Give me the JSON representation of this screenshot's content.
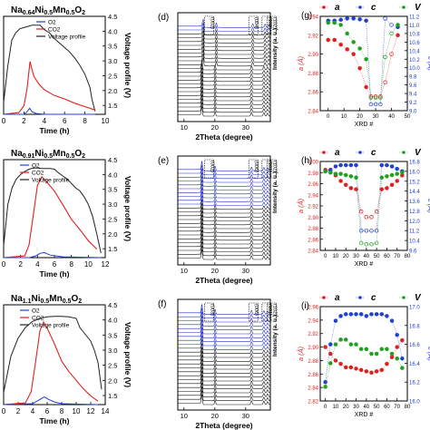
{
  "chart_data": [
    {
      "panel": "",
      "type": "line",
      "title": "Na0.64Ni0.5Mn0.5O2",
      "xlabel": "Time (h)",
      "ylabel_right": "Voltage profile (V)",
      "xlim": [
        0,
        10
      ],
      "xticks": [
        "0",
        "2",
        "4",
        "6",
        "8",
        "10"
      ],
      "y2lim": [
        1.2,
        4.5
      ],
      "y2ticks": [
        "1.5",
        "2.0",
        "2.5",
        "3.0",
        "3.5",
        "4.0",
        "4.5"
      ],
      "legend": [
        "O2",
        "CO2",
        "Voltage profile"
      ],
      "legend_position": "top-center",
      "series": [
        {
          "name": "Voltage profile",
          "color": "#222222",
          "axis": "right",
          "x": [
            0,
            0.4,
            0.8,
            1.2,
            1.6,
            2.0,
            2.4,
            2.8,
            3.2,
            3.6,
            4.0,
            4.5,
            5.0,
            5.5,
            6.0,
            6.5,
            7.0,
            7.5,
            8.0,
            8.5,
            8.7,
            9.0
          ],
          "y": [
            1.6,
            2.8,
            3.7,
            3.95,
            4.08,
            4.12,
            4.16,
            4.2,
            4.2,
            4.2,
            4.05,
            3.95,
            3.75,
            3.6,
            3.45,
            3.3,
            3.1,
            2.85,
            2.55,
            2.1,
            1.7,
            1.3
          ]
        },
        {
          "name": "CO2",
          "color": "#e02020",
          "axis": "left",
          "x": [
            0,
            1.5,
            2.0,
            2.3,
            2.6,
            2.8,
            3.0,
            3.5,
            4.0,
            5.0,
            6.0,
            7.0,
            8.0,
            9.0
          ],
          "y": [
            0.0,
            0.02,
            0.1,
            0.3,
            0.62,
            0.52,
            0.44,
            0.35,
            0.29,
            0.22,
            0.18,
            0.13,
            0.09,
            0.05
          ]
        },
        {
          "name": "O2",
          "color": "#2040d0",
          "axis": "left",
          "x": [
            0,
            2.0,
            2.3,
            2.55,
            2.8,
            3.2,
            4.0,
            9.0
          ],
          "y": [
            0.0,
            0.0,
            0.03,
            0.07,
            0.03,
            0.01,
            0.0,
            0.0
          ]
        }
      ]
    },
    {
      "panel": "",
      "type": "line",
      "title": "Na0.91Ni0.5Mn0.5O2",
      "xlabel": "Time (h)",
      "ylabel_right": "Voltage profile (V)",
      "xlim": [
        0,
        12
      ],
      "xticks": [
        "0",
        "2",
        "4",
        "6",
        "8",
        "10",
        "12"
      ],
      "y2lim": [
        1.2,
        4.5
      ],
      "y2ticks": [
        "1.5",
        "2.0",
        "2.5",
        "3.0",
        "3.5",
        "4.0",
        "4.5"
      ],
      "legend": [
        "O2",
        "CO2",
        "Voltage profile"
      ],
      "legend_position": "top-left",
      "series": [
        {
          "name": "Voltage profile",
          "color": "#222222",
          "axis": "right",
          "x": [
            0,
            0.5,
            1.0,
            1.5,
            2.0,
            2.5,
            3.0,
            3.5,
            4.0,
            4.5,
            5.0,
            5.5,
            6.0,
            6.5,
            7.0,
            7.5,
            8.0,
            8.5,
            9.0,
            9.5,
            10.0,
            10.5,
            11.0,
            11.5
          ],
          "y": [
            1.6,
            3.0,
            3.55,
            3.85,
            4.0,
            4.1,
            4.18,
            4.22,
            4.22,
            4.2,
            4.2,
            4.2,
            4.18,
            4.05,
            3.95,
            3.85,
            3.7,
            3.55,
            3.45,
            3.25,
            3.0,
            2.6,
            2.0,
            1.35
          ]
        },
        {
          "name": "CO2",
          "color": "#e02020",
          "axis": "left",
          "x": [
            0,
            2.5,
            3.0,
            3.5,
            4.0,
            4.5,
            5.0,
            6.0,
            7.0,
            8.0,
            9.0,
            10.0,
            11.0
          ],
          "y": [
            0.0,
            0.02,
            0.15,
            0.5,
            0.85,
            0.95,
            0.9,
            0.78,
            0.62,
            0.45,
            0.33,
            0.2,
            0.1
          ]
        },
        {
          "name": "O2",
          "color": "#2040d0",
          "axis": "left",
          "x": [
            0,
            3.0,
            3.8,
            4.3,
            4.8,
            5.5,
            7.0,
            11.5
          ],
          "y": [
            0.0,
            0.0,
            0.02,
            0.05,
            0.06,
            0.03,
            0.01,
            0.0
          ]
        }
      ]
    },
    {
      "panel": "",
      "type": "line",
      "title": "Na1.1Ni0.5Mn0.5O2",
      "xlabel": "Time (h)",
      "ylabel_right": "Voltage profile (V)",
      "xlim": [
        0,
        14
      ],
      "xticks": [
        "0",
        "2",
        "4",
        "6",
        "8",
        "10",
        "12",
        "14"
      ],
      "y2lim": [
        1.2,
        4.5
      ],
      "y2ticks": [
        "1.5",
        "2.0",
        "2.5",
        "3.0",
        "3.5",
        "4.0",
        "4.5"
      ],
      "legend": [
        "O2",
        "CO2",
        "Voltage profile"
      ],
      "legend_position": "top-left",
      "series": [
        {
          "name": "Voltage profile",
          "color": "#222222",
          "axis": "right",
          "x": [
            0,
            1.0,
            2.0,
            3.0,
            4.0,
            5.0,
            6.0,
            7.0,
            8.0,
            9.0,
            10.0,
            10.5,
            11.0,
            11.5,
            12.0,
            12.5,
            13.0,
            13.5
          ],
          "y": [
            1.6,
            2.8,
            3.4,
            3.75,
            3.95,
            4.05,
            4.1,
            4.12,
            4.12,
            4.1,
            4.05,
            3.75,
            3.6,
            3.45,
            3.3,
            3.0,
            2.6,
            1.7
          ]
        },
        {
          "name": "CO2",
          "color": "#e02020",
          "axis": "left",
          "x": [
            0,
            3.0,
            3.8,
            4.5,
            5.0,
            5.5,
            6.0,
            7.0,
            8.0,
            9.0,
            10.0,
            11.0,
            12.0,
            13.0
          ],
          "y": [
            0.0,
            0.02,
            0.15,
            0.55,
            0.85,
            0.95,
            0.88,
            0.7,
            0.5,
            0.38,
            0.28,
            0.18,
            0.1,
            0.04
          ]
        },
        {
          "name": "O2",
          "color": "#2040d0",
          "axis": "left",
          "x": [
            0,
            4.0,
            5.0,
            5.6,
            6.2,
            7.0,
            8.0,
            13.0
          ],
          "y": [
            0.0,
            0.01,
            0.06,
            0.09,
            0.06,
            0.03,
            0.01,
            0.0
          ]
        }
      ]
    },
    {
      "panel": "(d)",
      "type": "line",
      "xlabel": "2Theta (degree)",
      "ylabel": "Intensity (a. u.)",
      "xlim": [
        8,
        38
      ],
      "xticks": [
        "10",
        "20",
        "30"
      ],
      "peak_labels": [
        "(002)",
        "(004)",
        "(100)",
        "(102)"
      ],
      "peaks": [
        15.8,
        20.1,
        31.9,
        35.9,
        37.1
      ],
      "pattern_count": 24,
      "blue_patterns_on_top": 2
    },
    {
      "panel": "(e)",
      "type": "line",
      "xlabel": "2Theta (degree)",
      "ylabel": "Intensity (a. u.)",
      "xlim": [
        8,
        38
      ],
      "xticks": [
        "10",
        "20",
        "30"
      ],
      "peak_labels": [
        "(002)",
        "(006)",
        "(101)",
        "(102)"
      ],
      "peaks": [
        15.8,
        20.1,
        31.9,
        35.9,
        37.1
      ],
      "pattern_count": 24,
      "blue_patterns_on_top": 10
    },
    {
      "panel": "(f)",
      "type": "line",
      "xlabel": "2Theta (degree)",
      "ylabel": "Intensity (a. u.)",
      "xlim": [
        8,
        38
      ],
      "xticks": [
        "10",
        "20",
        "30"
      ],
      "peak_labels": [
        "(003)",
        "(006)",
        "(101)",
        "(102)"
      ],
      "peaks": [
        15.8,
        20.1,
        31.9,
        35.9,
        37.1
      ],
      "pattern_count": 24,
      "blue_patterns_on_top": 10
    },
    {
      "panel": "(g)",
      "type": "scatter",
      "xlabel": "XRD #",
      "ylabel": "a (Å)",
      "ylabel_right": "c (Å)",
      "header_labels": [
        "a",
        "c",
        "V"
      ],
      "xlim": [
        -5,
        50
      ],
      "xticks": [
        "0",
        "10",
        "20",
        "30",
        "40",
        "50"
      ],
      "ylim": [
        2.84,
        2.94
      ],
      "yticks": [
        "2.84",
        "2.86",
        "2.88",
        "2.90",
        "2.92",
        "2.94"
      ],
      "y2lim": [
        9.0,
        11.2
      ],
      "y2ticks": [
        "9.0",
        "9.2",
        "9.4",
        "9.6",
        "9.8",
        "10.0",
        "10.2",
        "10.4",
        "10.6",
        "10.8",
        "11.0",
        "11.2"
      ],
      "series": [
        {
          "name": "a",
          "color": "#e02020",
          "axis": "left",
          "open_from": 27,
          "x": [
            0,
            4,
            8,
            12,
            16,
            20,
            24,
            27,
            30,
            33,
            36,
            40,
            44
          ],
          "y": [
            2.915,
            2.915,
            2.91,
            2.905,
            2.9,
            2.885,
            2.865,
            2.855,
            2.855,
            2.855,
            2.87,
            2.9,
            2.92
          ]
        },
        {
          "name": "c",
          "color": "#2040d0",
          "axis": "right",
          "open_from": 27,
          "x": [
            0,
            4,
            8,
            12,
            16,
            20,
            24,
            27,
            30,
            33,
            36,
            40,
            44
          ],
          "y": [
            11.1,
            11.1,
            11.12,
            11.15,
            11.15,
            11.13,
            11.1,
            9.15,
            9.15,
            9.15,
            11.15,
            11.0,
            10.95
          ]
        },
        {
          "name": "V",
          "color": "#20a020",
          "axis": "right",
          "open_from": 27,
          "x": [
            0,
            4,
            8,
            12,
            16,
            20,
            24,
            27,
            30,
            33,
            36,
            40,
            44
          ],
          "y": [
            11.05,
            11.05,
            11.0,
            10.8,
            10.6,
            10.45,
            10.2,
            9.3,
            9.3,
            9.3,
            10.25,
            10.8,
            11.0
          ]
        }
      ]
    },
    {
      "panel": "(h)",
      "type": "scatter",
      "xlabel": "XRD #",
      "ylabel": "a (Å)",
      "ylabel_right": "c (Å)",
      "header_labels": [
        "a",
        "c",
        "V"
      ],
      "xlim": [
        -5,
        80
      ],
      "xticks": [
        "0",
        "10",
        "20",
        "30",
        "40",
        "50",
        "60",
        "70",
        "80"
      ],
      "ylim": [
        2.84,
        3.0
      ],
      "yticks": [
        "2.84",
        "2.86",
        "2.88",
        "2.90",
        "2.92",
        "2.94",
        "2.96",
        "2.98",
        "3.00"
      ],
      "y2lim": [
        9.6,
        16.8
      ],
      "y2ticks": [
        "9.6",
        "10.4",
        "11.2",
        "12.0",
        "12.8",
        "13.6",
        "14.4",
        "15.2",
        "16.0",
        "16.8"
      ],
      "series": [
        {
          "name": "a",
          "color": "#e02020",
          "axis": "left",
          "open_from": 35,
          "x": [
            0,
            5,
            10,
            15,
            20,
            25,
            30,
            35,
            40,
            45,
            50,
            55,
            60,
            65,
            70,
            75
          ],
          "y": [
            2.985,
            2.985,
            2.975,
            2.965,
            2.958,
            2.952,
            2.95,
            2.91,
            2.9,
            2.9,
            2.91,
            2.95,
            2.952,
            2.958,
            2.965,
            2.975
          ]
        },
        {
          "name": "c",
          "color": "#2040d0",
          "axis": "right",
          "open_from": 35,
          "x": [
            0,
            5,
            10,
            15,
            20,
            25,
            30,
            35,
            40,
            45,
            50,
            55,
            60,
            65,
            70,
            75
          ],
          "y": [
            16.0,
            16.1,
            16.4,
            16.5,
            16.5,
            16.5,
            16.5,
            11.2,
            11.2,
            11.2,
            11.2,
            16.5,
            16.5,
            16.4,
            16.2,
            16.0
          ]
        },
        {
          "name": "V",
          "color": "#20a020",
          "axis": "right",
          "open_from": 35,
          "x": [
            0,
            5,
            10,
            15,
            20,
            25,
            30,
            35,
            40,
            45,
            50,
            55,
            60,
            65,
            70,
            75
          ],
          "y": [
            16.0,
            15.9,
            15.8,
            15.8,
            15.7,
            15.6,
            15.5,
            10.2,
            10.1,
            10.1,
            10.2,
            15.5,
            15.6,
            15.7,
            15.8,
            15.9
          ]
        }
      ]
    },
    {
      "panel": "(i)",
      "type": "scatter",
      "xlabel": "XRD #",
      "ylabel": "a (Å)",
      "ylabel_right": "c (Å)",
      "header_labels": [
        "a",
        "c",
        "V"
      ],
      "xlim": [
        -5,
        80
      ],
      "xticks": [
        "0",
        "10",
        "20",
        "30",
        "40",
        "50",
        "60",
        "70",
        "80"
      ],
      "ylim": [
        2.82,
        2.96
      ],
      "yticks": [
        "2.82",
        "2.84",
        "2.86",
        "2.88",
        "2.90",
        "2.92",
        "2.94",
        "2.96"
      ],
      "y2lim": [
        16.0,
        17.0
      ],
      "y2ticks": [
        "16.0",
        "16.2",
        "16.4",
        "16.6",
        "16.8",
        "17.0"
      ],
      "series": [
        {
          "name": "a",
          "color": "#e02020",
          "axis": "left",
          "x": [
            0,
            5,
            10,
            15,
            20,
            25,
            30,
            35,
            40,
            45,
            50,
            55,
            60,
            65,
            70,
            75
          ],
          "y": [
            2.9,
            2.89,
            2.88,
            2.875,
            2.87,
            2.87,
            2.868,
            2.866,
            2.864,
            2.862,
            2.864,
            2.866,
            2.875,
            2.885,
            2.9,
            2.91
          ]
        },
        {
          "name": "c",
          "color": "#2040d0",
          "axis": "right",
          "x": [
            0,
            5,
            10,
            15,
            20,
            25,
            30,
            35,
            40,
            45,
            50,
            55,
            60,
            65,
            70,
            75
          ],
          "y": [
            16.2,
            16.6,
            16.85,
            16.9,
            16.92,
            16.92,
            16.92,
            16.92,
            16.9,
            16.92,
            16.92,
            16.92,
            16.9,
            16.85,
            16.7,
            16.45
          ]
        },
        {
          "name": "V",
          "color": "#20a020",
          "axis": "right",
          "x": [
            0,
            5,
            10,
            15,
            20,
            25,
            30,
            35,
            40,
            45,
            50,
            55,
            60,
            65,
            70,
            75
          ],
          "y": [
            16.15,
            16.4,
            16.6,
            16.65,
            16.65,
            16.6,
            16.6,
            16.55,
            16.55,
            16.5,
            16.5,
            16.55,
            16.55,
            16.5,
            16.45,
            16.35
          ]
        }
      ]
    }
  ]
}
